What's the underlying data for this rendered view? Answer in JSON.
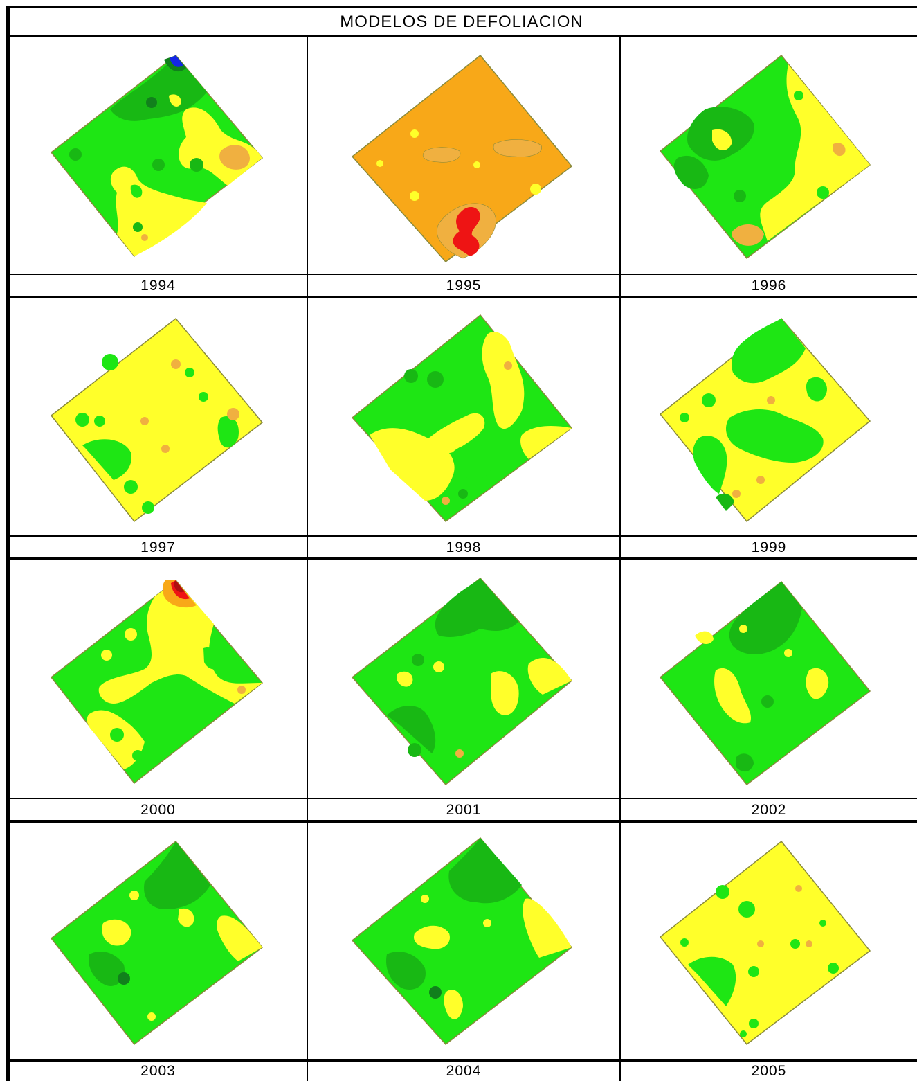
{
  "title": "MODELOS DE DEFOLIACION",
  "panels": [
    {
      "year": "1994",
      "base": "green",
      "colors": {
        "blue": true
      }
    },
    {
      "year": "1995",
      "base": "orange"
    },
    {
      "year": "1996",
      "base": "green"
    },
    {
      "year": "1997",
      "base": "yellow"
    },
    {
      "year": "1998",
      "base": "green"
    },
    {
      "year": "1999",
      "base": "yellow"
    },
    {
      "year": "2000",
      "base": "green"
    },
    {
      "year": "2001",
      "base": "green"
    },
    {
      "year": "2002",
      "base": "green"
    },
    {
      "year": "2003",
      "base": "green"
    },
    {
      "year": "2004",
      "base": "green"
    },
    {
      "year": "2005",
      "base": "yellow"
    }
  ],
  "palette": {
    "green": "#1ee614",
    "dark_green": "#18b814",
    "darker_green": "#11801c",
    "yellow": "#ffff2a",
    "orange": "#f8a818",
    "light_orange": "#f0b040",
    "red": "#ee1414",
    "dark_red": "#b01010",
    "blue": "#1426e6",
    "outline": "#8a8a3c"
  }
}
